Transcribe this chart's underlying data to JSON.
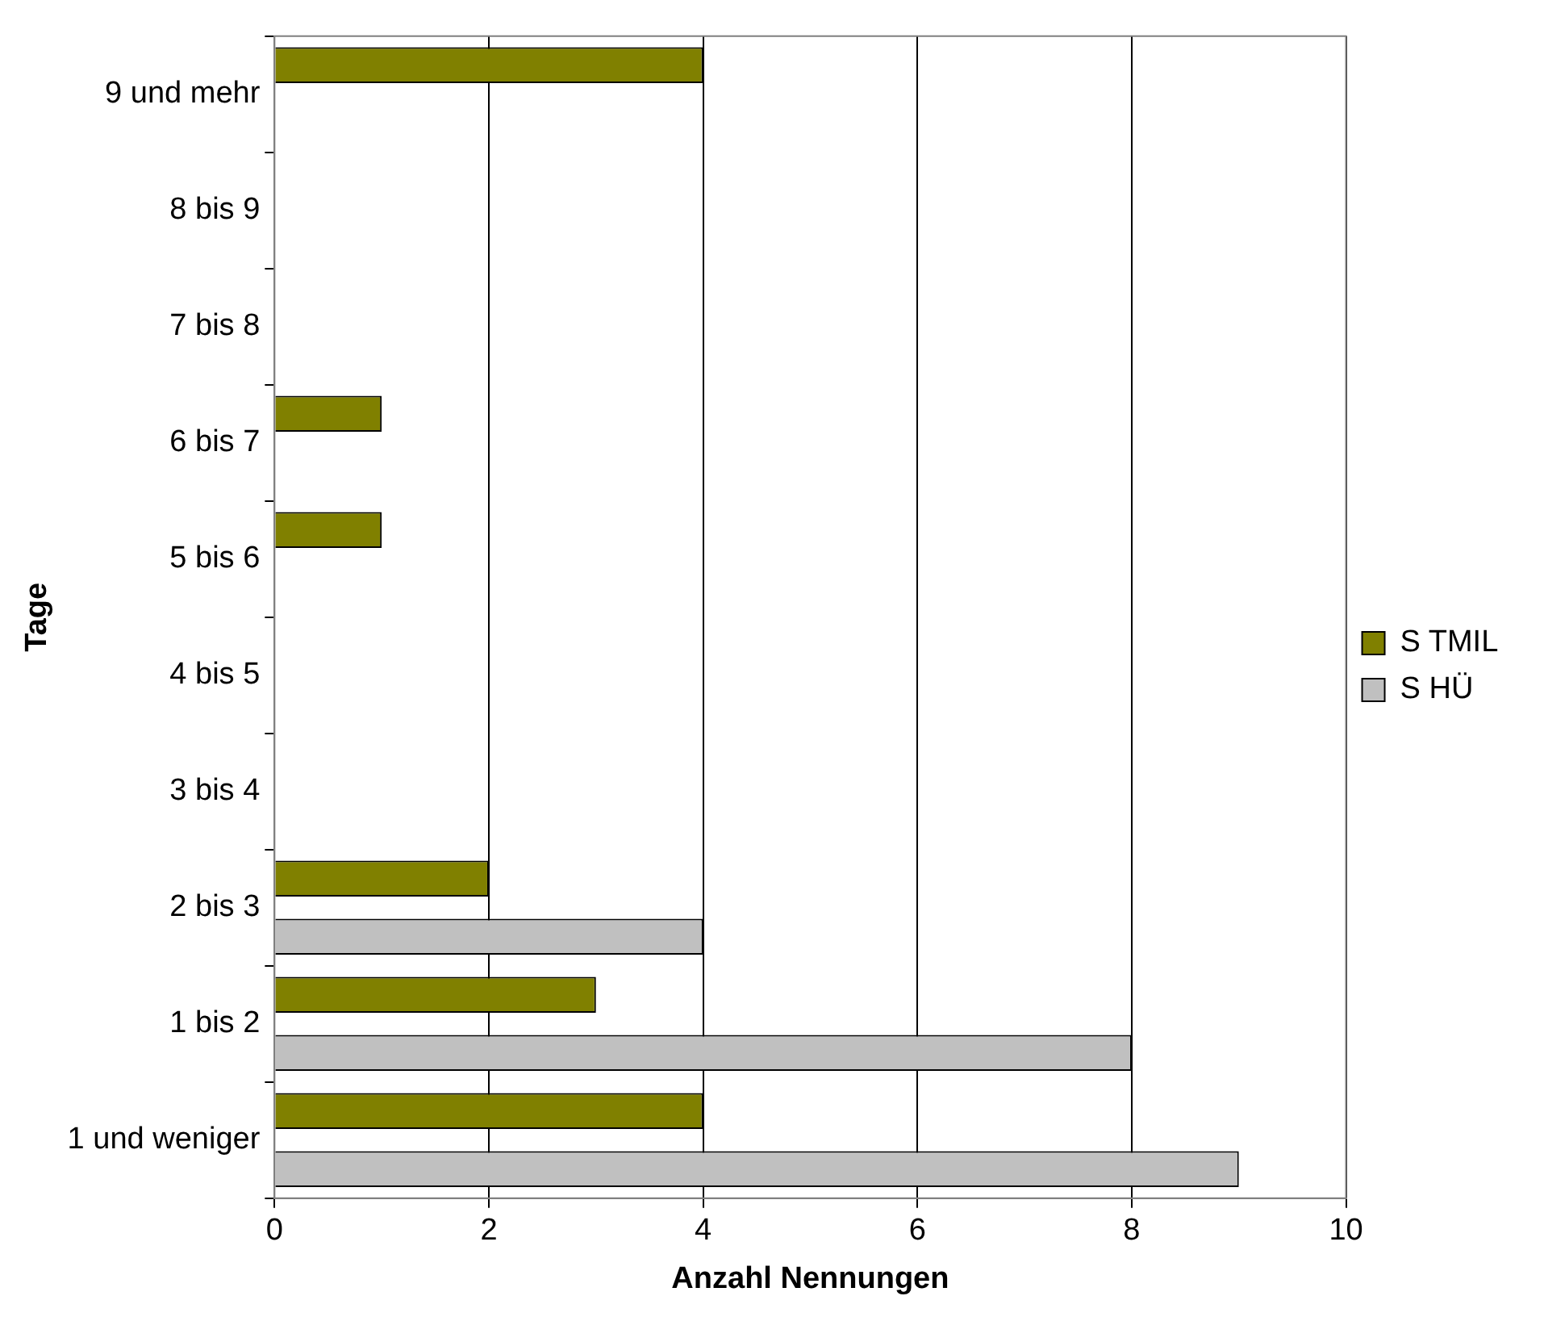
{
  "chart_data": {
    "type": "bar",
    "orientation": "horizontal",
    "xlabel": "Anzahl Nennungen",
    "ylabel": "Tage",
    "categories": [
      "9 und mehr",
      "8 bis 9",
      "7 bis 8",
      "6 bis 7",
      "5 bis 6",
      "4 bis 5",
      "3 bis 4",
      "2 bis 3",
      "1 bis 2",
      "1 und weniger"
    ],
    "series": [
      {
        "name": "S TMIL",
        "color": "#808000",
        "values": [
          4,
          0,
          0,
          1,
          1,
          0,
          0,
          2,
          3,
          4
        ]
      },
      {
        "name": "S HÜ",
        "color": "#c0c0c0",
        "values": [
          0,
          0,
          0,
          0,
          0,
          0,
          0,
          4,
          8,
          9
        ]
      }
    ],
    "xlim": [
      0,
      10
    ],
    "xticks": [
      0,
      2,
      4,
      6,
      8,
      10
    ],
    "grid": "x",
    "legend": "right"
  }
}
